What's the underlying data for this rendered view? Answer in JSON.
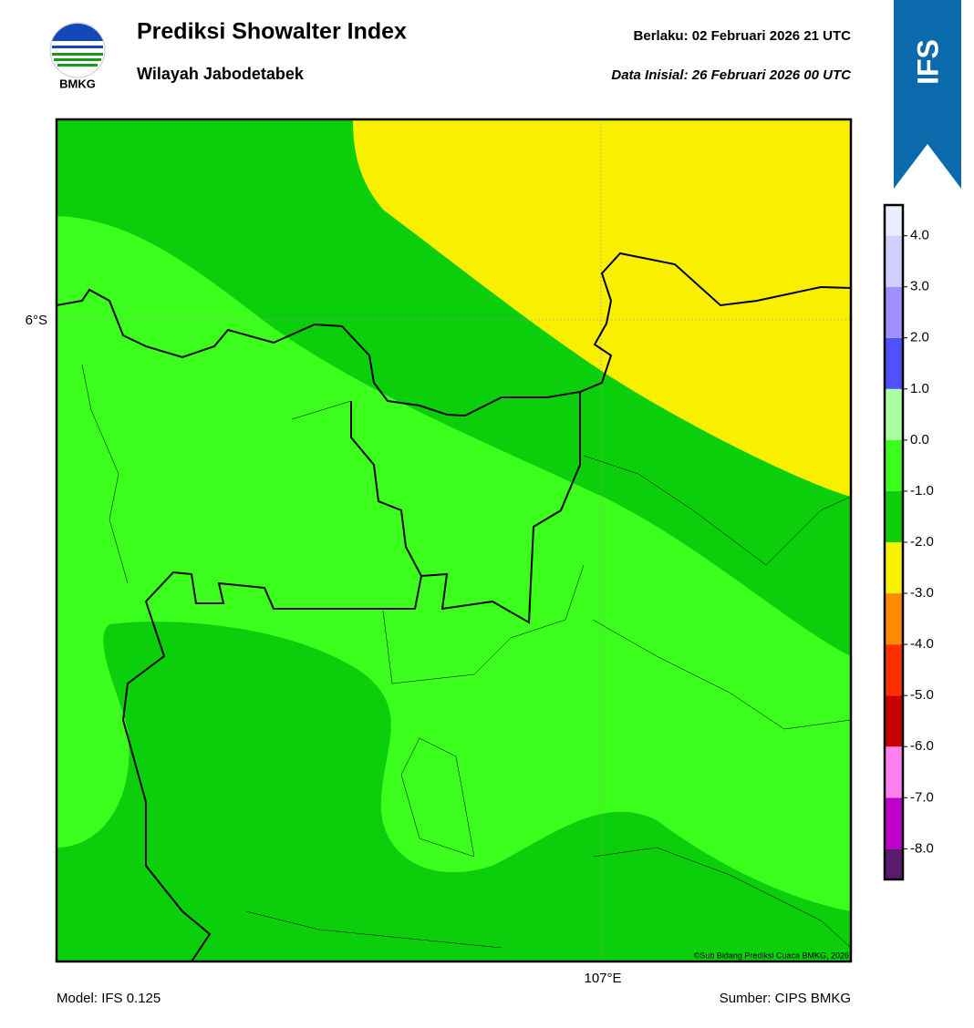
{
  "header": {
    "logo_text": "BMKG",
    "title": "Prediksi Showalter Index",
    "subtitle": "Wilayah Jabodetabek",
    "valid": "Berlaku:  02 Februari 2026 21 UTC",
    "initial": "Data Inisial:  26 Februari 2026 00 UTC",
    "badge": "IFS"
  },
  "map": {
    "lat_label": "6°S",
    "lon_label": "107°E",
    "credit": "©Sub Bidang Prediksi Cuaca BMKG, 2026"
  },
  "colorbar": {
    "bounds": [
      -8.6,
      -8,
      -7,
      -6,
      -5,
      -4,
      -3,
      -2,
      -1,
      0,
      1,
      2,
      3,
      4,
      4.6
    ],
    "colors": [
      "#5a1a6e",
      "#c000c8",
      "#ff80f0",
      "#c80000",
      "#ff3000",
      "#ff8c00",
      "#f8f000",
      "#0acf0a",
      "#3dff1e",
      "#aaffa0",
      "#5050ff",
      "#9f8fff",
      "#d0d0ff",
      "#ececff"
    ],
    "ticks": [
      {
        "value": -8,
        "label": "-8.0"
      },
      {
        "value": -7,
        "label": "-7.0"
      },
      {
        "value": -6,
        "label": "-6.0"
      },
      {
        "value": -5,
        "label": "-5.0"
      },
      {
        "value": -4,
        "label": "-4.0"
      },
      {
        "value": -3,
        "label": "-3.0"
      },
      {
        "value": -2,
        "label": "-2.0"
      },
      {
        "value": -1,
        "label": "-1.0"
      },
      {
        "value": 0,
        "label": "0.0"
      },
      {
        "value": 1,
        "label": "1.0"
      },
      {
        "value": 2,
        "label": "2.0"
      },
      {
        "value": 3,
        "label": "3.0"
      },
      {
        "value": 4,
        "label": "4.0"
      }
    ]
  },
  "footer": {
    "model": "Model: IFS 0.125",
    "source": "Sumber: CIPS BMKG"
  }
}
